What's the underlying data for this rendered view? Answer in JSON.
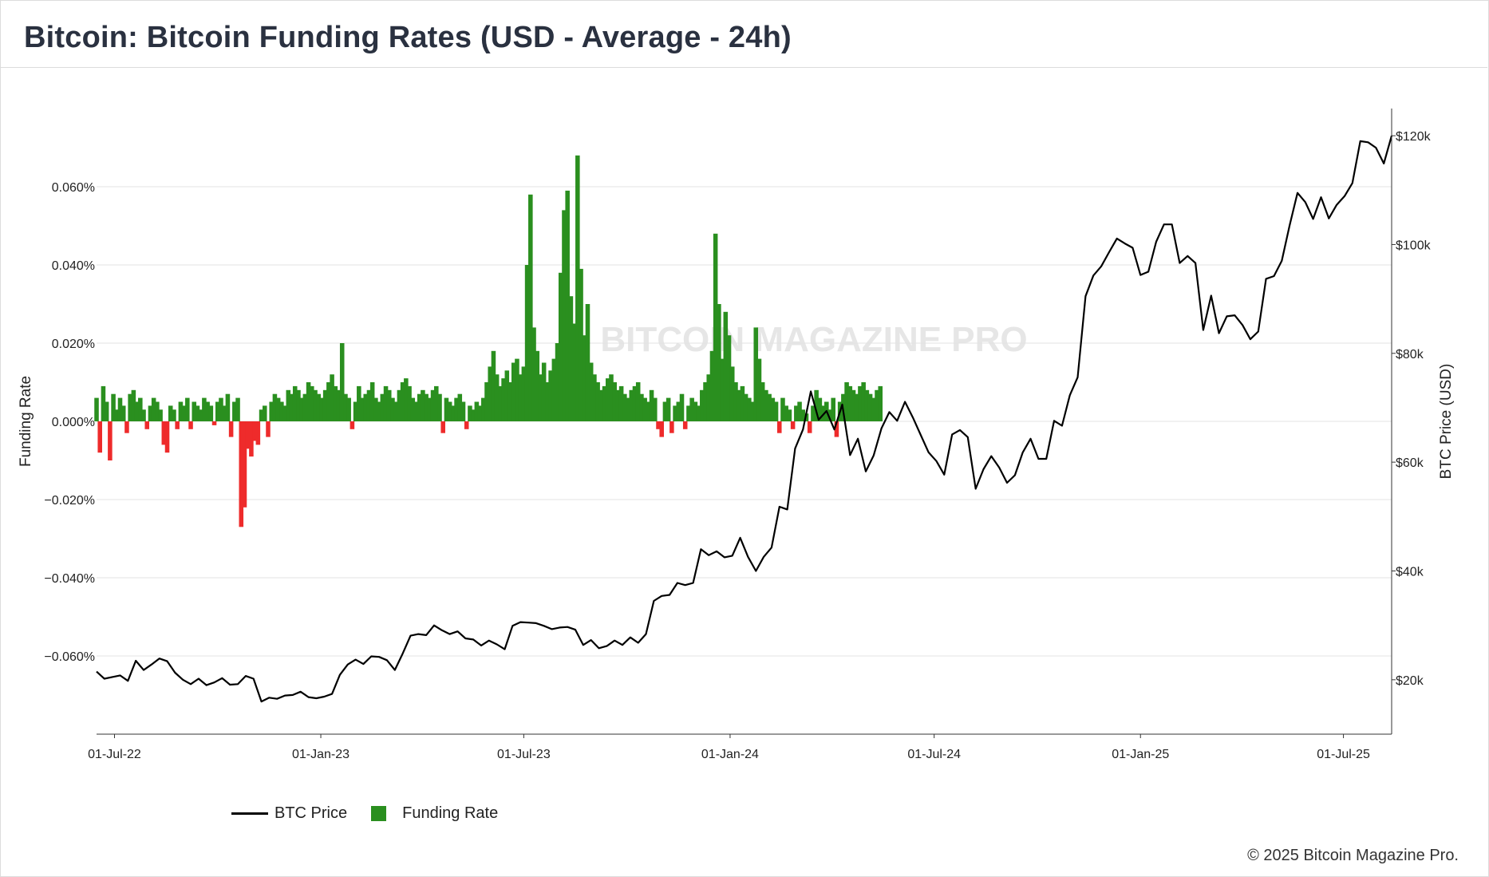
{
  "header": {
    "title": "Bitcoin: Bitcoin Funding Rates (USD - Average - 24h)"
  },
  "footer": {
    "copyright": "© 2025 Bitcoin Magazine Pro."
  },
  "watermark": {
    "text": "BITCOIN MAGAZINE PRO"
  },
  "legend": {
    "items": [
      "BTC Price",
      "Funding Rate"
    ]
  },
  "colors": {
    "positive": "#2a8f1f",
    "negative": "#ee2b2b",
    "price_line": "#000000",
    "grid": "#e3e3e3",
    "title": "#2a3140"
  },
  "chart_data": {
    "type": "bar+line",
    "title": "Bitcoin: Bitcoin Funding Rates (USD - Average - 24h)",
    "xlabel": "",
    "ylabel_left": "Funding Rate",
    "ylabel_right": "BTC Price (USD)",
    "xlim": [
      "2022-06-15",
      "2025-08-13"
    ],
    "ylim_left": [
      -0.08,
      0.08
    ],
    "ylim_right": [
      10000,
      125000
    ],
    "left_axis": {
      "label": "Funding Rate",
      "ticks": [
        0.06,
        0.04,
        0.02,
        0.0,
        -0.02,
        -0.04,
        -0.06
      ],
      "tick_labels": [
        "0.060%",
        "0.040%",
        "0.020%",
        "0.000%",
        "−0.020%",
        "−0.040%",
        "−0.060%"
      ]
    },
    "right_axis": {
      "label": "BTC Price (USD)",
      "ticks": [
        120000,
        100000,
        80000,
        60000,
        40000,
        20000
      ],
      "tick_labels": [
        "$120k",
        "$100k",
        "$80k",
        "$60k",
        "$40k",
        "$20k"
      ]
    },
    "x_ticks": {
      "dates": [
        "2022-07-01",
        "2023-01-01",
        "2023-07-01",
        "2024-01-01",
        "2024-07-01",
        "2025-01-01",
        "2025-07-01"
      ],
      "labels": [
        "01-Jul-22",
        "01-Jan-23",
        "01-Jul-23",
        "01-Jan-24",
        "01-Jul-24",
        "01-Jan-25",
        "01-Jul-25"
      ]
    },
    "grid": true,
    "legend_position": "bottom-left",
    "series": [
      {
        "name": "BTC Price",
        "kind": "line",
        "axis": "right",
        "points": [
          [
            "2022-06-15",
            21500
          ],
          [
            "2022-06-22",
            20200
          ],
          [
            "2022-06-29",
            20500
          ],
          [
            "2022-07-06",
            20800
          ],
          [
            "2022-07-13",
            19800
          ],
          [
            "2022-07-20",
            23500
          ],
          [
            "2022-07-27",
            21800
          ],
          [
            "2022-08-03",
            22800
          ],
          [
            "2022-08-10",
            23900
          ],
          [
            "2022-08-17",
            23400
          ],
          [
            "2022-08-24",
            21300
          ],
          [
            "2022-08-31",
            20000
          ],
          [
            "2022-09-07",
            19200
          ],
          [
            "2022-09-14",
            20200
          ],
          [
            "2022-09-21",
            19000
          ],
          [
            "2022-09-28",
            19500
          ],
          [
            "2022-10-05",
            20300
          ],
          [
            "2022-10-12",
            19100
          ],
          [
            "2022-10-19",
            19200
          ],
          [
            "2022-10-26",
            20700
          ],
          [
            "2022-11-02",
            20200
          ],
          [
            "2022-11-09",
            16000
          ],
          [
            "2022-11-16",
            16700
          ],
          [
            "2022-11-23",
            16500
          ],
          [
            "2022-11-30",
            17100
          ],
          [
            "2022-12-07",
            17200
          ],
          [
            "2022-12-14",
            17800
          ],
          [
            "2022-12-21",
            16800
          ],
          [
            "2022-12-28",
            16600
          ],
          [
            "2023-01-04",
            16900
          ],
          [
            "2023-01-11",
            17400
          ],
          [
            "2023-01-18",
            20900
          ],
          [
            "2023-01-25",
            22800
          ],
          [
            "2023-02-01",
            23700
          ],
          [
            "2023-02-08",
            22900
          ],
          [
            "2023-02-15",
            24300
          ],
          [
            "2023-02-22",
            24200
          ],
          [
            "2023-03-01",
            23600
          ],
          [
            "2023-03-08",
            21800
          ],
          [
            "2023-03-15",
            24800
          ],
          [
            "2023-03-22",
            28100
          ],
          [
            "2023-03-29",
            28400
          ],
          [
            "2023-04-05",
            28200
          ],
          [
            "2023-04-12",
            30000
          ],
          [
            "2023-04-19",
            29100
          ],
          [
            "2023-04-26",
            28400
          ],
          [
            "2023-05-03",
            28900
          ],
          [
            "2023-05-10",
            27600
          ],
          [
            "2023-05-17",
            27400
          ],
          [
            "2023-05-24",
            26300
          ],
          [
            "2023-05-31",
            27200
          ],
          [
            "2023-06-07",
            26500
          ],
          [
            "2023-06-14",
            25600
          ],
          [
            "2023-06-21",
            29900
          ],
          [
            "2023-06-28",
            30600
          ],
          [
            "2023-07-05",
            30500
          ],
          [
            "2023-07-12",
            30400
          ],
          [
            "2023-07-19",
            29900
          ],
          [
            "2023-07-26",
            29300
          ],
          [
            "2023-08-02",
            29600
          ],
          [
            "2023-08-09",
            29700
          ],
          [
            "2023-08-16",
            29200
          ],
          [
            "2023-08-23",
            26400
          ],
          [
            "2023-08-30",
            27300
          ],
          [
            "2023-09-06",
            25800
          ],
          [
            "2023-09-13",
            26200
          ],
          [
            "2023-09-20",
            27200
          ],
          [
            "2023-09-27",
            26400
          ],
          [
            "2023-10-04",
            27800
          ],
          [
            "2023-10-11",
            26800
          ],
          [
            "2023-10-18",
            28400
          ],
          [
            "2023-10-25",
            34500
          ],
          [
            "2023-11-01",
            35400
          ],
          [
            "2023-11-08",
            35600
          ],
          [
            "2023-11-15",
            37800
          ],
          [
            "2023-11-22",
            37400
          ],
          [
            "2023-11-29",
            37800
          ],
          [
            "2023-12-06",
            44000
          ],
          [
            "2023-12-13",
            42900
          ],
          [
            "2023-12-20",
            43600
          ],
          [
            "2023-12-27",
            42500
          ],
          [
            "2024-01-03",
            42800
          ],
          [
            "2024-01-10",
            46100
          ],
          [
            "2024-01-17",
            42600
          ],
          [
            "2024-01-24",
            40000
          ],
          [
            "2024-01-31",
            42600
          ],
          [
            "2024-02-07",
            44300
          ],
          [
            "2024-02-14",
            51800
          ],
          [
            "2024-02-21",
            51300
          ],
          [
            "2024-02-28",
            62500
          ],
          [
            "2024-03-06",
            66000
          ],
          [
            "2024-03-13",
            73000
          ],
          [
            "2024-03-20",
            67800
          ],
          [
            "2024-03-27",
            69400
          ],
          [
            "2024-04-03",
            66000
          ],
          [
            "2024-04-10",
            70600
          ],
          [
            "2024-04-17",
            61300
          ],
          [
            "2024-04-24",
            64300
          ],
          [
            "2024-05-01",
            58300
          ],
          [
            "2024-05-08",
            61200
          ],
          [
            "2024-05-15",
            66200
          ],
          [
            "2024-05-22",
            69200
          ],
          [
            "2024-05-29",
            67600
          ],
          [
            "2024-06-05",
            71100
          ],
          [
            "2024-06-12",
            68200
          ],
          [
            "2024-06-19",
            65000
          ],
          [
            "2024-06-26",
            61800
          ],
          [
            "2024-07-03",
            60200
          ],
          [
            "2024-07-10",
            57700
          ],
          [
            "2024-07-17",
            65100
          ],
          [
            "2024-07-24",
            65900
          ],
          [
            "2024-07-31",
            64600
          ],
          [
            "2024-08-07",
            55100
          ],
          [
            "2024-08-14",
            58700
          ],
          [
            "2024-08-21",
            61100
          ],
          [
            "2024-08-28",
            59000
          ],
          [
            "2024-09-04",
            56200
          ],
          [
            "2024-09-11",
            57600
          ],
          [
            "2024-09-18",
            61800
          ],
          [
            "2024-09-25",
            64300
          ],
          [
            "2024-10-02",
            60600
          ],
          [
            "2024-10-09",
            60600
          ],
          [
            "2024-10-16",
            67600
          ],
          [
            "2024-10-23",
            66700
          ],
          [
            "2024-10-30",
            72300
          ],
          [
            "2024-11-06",
            75600
          ],
          [
            "2024-11-13",
            90500
          ],
          [
            "2024-11-20",
            94300
          ],
          [
            "2024-11-27",
            96000
          ],
          [
            "2024-12-04",
            98600
          ],
          [
            "2024-12-11",
            101100
          ],
          [
            "2024-12-18",
            100200
          ],
          [
            "2024-12-25",
            99400
          ],
          [
            "2025-01-01",
            94400
          ],
          [
            "2025-01-08",
            95000
          ],
          [
            "2025-01-15",
            100500
          ],
          [
            "2025-01-22",
            103700
          ],
          [
            "2025-01-29",
            103700
          ],
          [
            "2025-02-05",
            96600
          ],
          [
            "2025-02-12",
            97900
          ],
          [
            "2025-02-19",
            96600
          ],
          [
            "2025-02-26",
            84300
          ],
          [
            "2025-03-05",
            90600
          ],
          [
            "2025-03-12",
            83700
          ],
          [
            "2025-03-19",
            86800
          ],
          [
            "2025-03-26",
            87000
          ],
          [
            "2025-04-02",
            85200
          ],
          [
            "2025-04-09",
            82600
          ],
          [
            "2025-04-16",
            84000
          ],
          [
            "2025-04-23",
            93700
          ],
          [
            "2025-04-30",
            94200
          ],
          [
            "2025-05-07",
            97000
          ],
          [
            "2025-05-14",
            103500
          ],
          [
            "2025-05-21",
            109500
          ],
          [
            "2025-05-28",
            107800
          ],
          [
            "2025-06-04",
            104700
          ],
          [
            "2025-06-11",
            108700
          ],
          [
            "2025-06-18",
            104800
          ],
          [
            "2025-06-25",
            107300
          ],
          [
            "2025-07-02",
            108900
          ],
          [
            "2025-07-09",
            111300
          ],
          [
            "2025-07-16",
            119000
          ],
          [
            "2025-07-23",
            118800
          ],
          [
            "2025-07-30",
            117800
          ],
          [
            "2025-08-06",
            114900
          ],
          [
            "2025-08-13",
            120000
          ]
        ]
      },
      {
        "name": "Funding Rate",
        "kind": "bar",
        "axis": "left",
        "start_date": "2022-06-15",
        "interval_days": 3,
        "values": [
          0.006,
          -0.008,
          0.009,
          0.005,
          -0.01,
          0.007,
          0.003,
          0.006,
          0.004,
          -0.003,
          0.007,
          0.008,
          0.005,
          0.006,
          0.003,
          -0.002,
          0.004,
          0.006,
          0.005,
          0.003,
          -0.006,
          -0.008,
          0.004,
          0.003,
          -0.002,
          0.005,
          0.004,
          0.006,
          -0.002,
          0.005,
          0.004,
          0.003,
          0.006,
          0.005,
          0.004,
          -0.001,
          0.005,
          0.006,
          0.004,
          0.007,
          -0.004,
          0.005,
          0.006,
          -0.027,
          -0.022,
          -0.007,
          -0.009,
          -0.005,
          -0.006,
          0.003,
          0.004,
          -0.004,
          0.005,
          0.007,
          0.006,
          0.005,
          0.004,
          0.008,
          0.007,
          0.009,
          0.008,
          0.006,
          0.007,
          0.01,
          0.009,
          0.008,
          0.007,
          0.006,
          0.008,
          0.01,
          0.012,
          0.009,
          0.008,
          0.02,
          0.007,
          0.006,
          -0.002,
          0.005,
          0.009,
          0.006,
          0.007,
          0.008,
          0.01,
          0.006,
          0.005,
          0.007,
          0.009,
          0.008,
          0.006,
          0.005,
          0.008,
          0.01,
          0.011,
          0.009,
          0.006,
          0.005,
          0.007,
          0.008,
          0.007,
          0.006,
          0.008,
          0.009,
          0.007,
          -0.003,
          0.006,
          0.005,
          0.004,
          0.006,
          0.007,
          0.005,
          -0.002,
          0.004,
          0.003,
          0.005,
          0.004,
          0.006,
          0.01,
          0.014,
          0.018,
          0.012,
          0.009,
          0.011,
          0.013,
          0.01,
          0.015,
          0.016,
          0.012,
          0.014,
          0.04,
          0.058,
          0.024,
          0.018,
          0.012,
          0.015,
          0.01,
          0.013,
          0.016,
          0.02,
          0.038,
          0.054,
          0.059,
          0.032,
          0.025,
          0.068,
          0.039,
          0.022,
          0.03,
          0.015,
          0.012,
          0.01,
          0.008,
          0.009,
          0.011,
          0.012,
          0.01,
          0.008,
          0.009,
          0.007,
          0.006,
          0.008,
          0.009,
          0.01,
          0.007,
          0.006,
          0.005,
          0.008,
          0.006,
          -0.002,
          -0.004,
          0.005,
          0.006,
          -0.003,
          0.004,
          0.005,
          0.007,
          -0.002,
          0.004,
          0.006,
          0.005,
          0.004,
          0.008,
          0.01,
          0.012,
          0.018,
          0.048,
          0.03,
          0.016,
          0.028,
          0.022,
          0.014,
          0.01,
          0.008,
          0.009,
          0.007,
          0.006,
          0.005,
          0.024,
          0.016,
          0.01,
          0.008,
          0.007,
          0.006,
          0.005,
          -0.003,
          0.006,
          0.004,
          0.003,
          -0.002,
          0.004,
          0.005,
          0.003,
          0.002,
          -0.003,
          0.004,
          0.008,
          0.006,
          0.004,
          0.005,
          0.003,
          0.006,
          -0.004,
          0.005,
          0.007,
          0.01,
          0.009,
          0.008,
          0.007,
          0.009,
          0.01,
          0.008,
          0.007,
          0.006,
          0.008,
          0.009
        ]
      }
    ]
  }
}
